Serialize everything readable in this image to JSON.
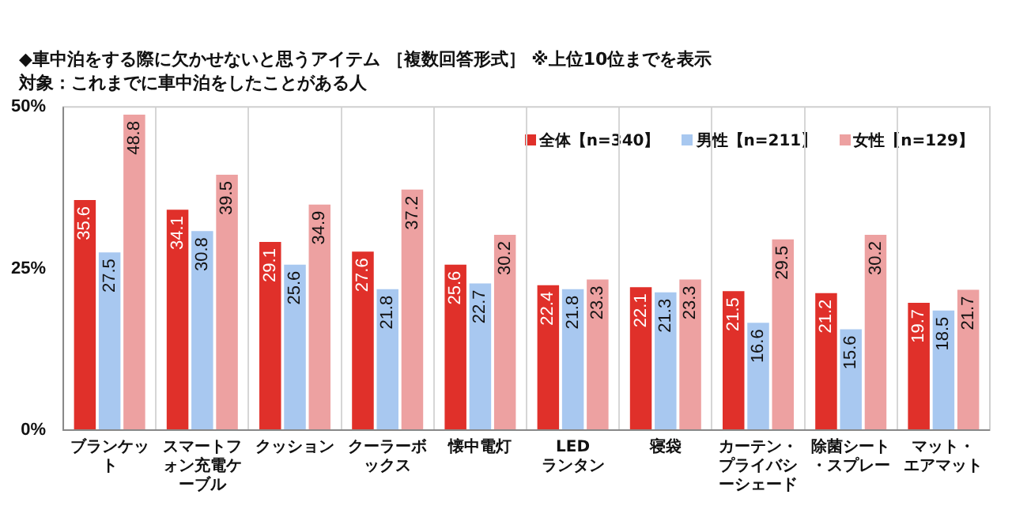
{
  "chart_data": {
    "type": "bar",
    "title": "◆車中泊をする際に欠かせないと思うアイテム ［複数回答形式］ ※上位10位までを表示",
    "subtitle": "対象：これまでに車中泊をしたことがある人",
    "categories": [
      "ブランケット",
      "スマートフォン充電ケーブル",
      "クッション",
      "クーラーボックス",
      "懐中電灯",
      "LED ランタン",
      "寝袋",
      "カーテン・プライバシーシェード",
      "除菌シート・スプレー",
      "マット・エアマット"
    ],
    "series": [
      {
        "name": "全体【n=340】",
        "color": "#e0302a",
        "values": [
          35.6,
          34.1,
          29.1,
          27.6,
          25.6,
          22.4,
          22.1,
          21.5,
          21.2,
          19.7
        ]
      },
      {
        "name": "男性【n=211】",
        "color": "#a8c8f0",
        "values": [
          27.5,
          30.8,
          25.6,
          21.8,
          22.7,
          21.8,
          21.3,
          16.6,
          15.6,
          18.5
        ]
      },
      {
        "name": "女性【n=129】",
        "color": "#eda1a1",
        "values": [
          48.8,
          39.5,
          34.9,
          37.2,
          30.2,
          23.3,
          23.3,
          29.5,
          30.2,
          21.7
        ]
      }
    ],
    "ylim": [
      0,
      50
    ],
    "yticks": [
      {
        "value": 0,
        "label": "0%"
      },
      {
        "value": 25,
        "label": "25%"
      },
      {
        "value": 50,
        "label": "50%"
      }
    ],
    "grid": "x",
    "legend": "top right",
    "data_labels": true
  }
}
